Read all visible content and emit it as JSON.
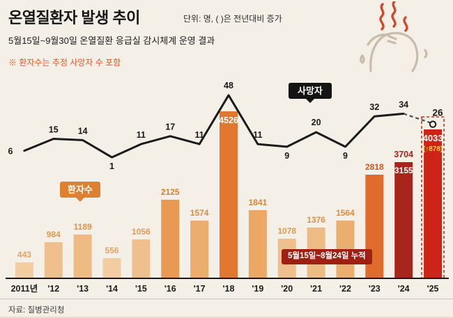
{
  "header": {
    "title": "온열질환자 발생 추이",
    "unit_note": "단위: 명, ( )은 전년대비 증가",
    "subtitle": "5월15일~9월30일 온열질환 응급실 감시체계 운영 결과",
    "footnote": "※ 환자수는 추정 사망자 수 포함"
  },
  "labels": {
    "patients": "환자수",
    "deaths": "사망자",
    "cumulative": "5월15일~8월24일 누적"
  },
  "footer": {
    "source": "자료: 질병관리청"
  },
  "chart_data": {
    "type": "bar",
    "title": "온열질환자 발생 추이",
    "categories": [
      "2011년",
      "'12",
      "'13",
      "'14",
      "'15",
      "'16",
      "'17",
      "'18",
      "'19",
      "'20",
      "'21",
      "'22",
      "'23",
      "'24",
      "'25"
    ],
    "series": [
      {
        "name": "환자수",
        "type": "bar",
        "values": [
          443,
          984,
          1189,
          556,
          1056,
          2125,
          1574,
          4526,
          1841,
          1078,
          1376,
          1564,
          2818,
          3155,
          4033
        ]
      },
      {
        "name": "사망자",
        "type": "line",
        "values": [
          6,
          15,
          14,
          1,
          11,
          17,
          11,
          48,
          11,
          9,
          20,
          9,
          32,
          34,
          26
        ]
      }
    ],
    "notes": {
      "y2024_full_period_patients": "3704",
      "y2025_yoy_change": "(↑878)"
    },
    "ylim_bar": [
      0,
      4526
    ],
    "ylim_line": [
      0,
      50
    ],
    "grid": false,
    "legend_position": "inline-callouts"
  },
  "style": {
    "background": "#f4efe7",
    "bar_colors": [
      "#f2cda2",
      "#efc08d",
      "#eebb84",
      "#f2cda2",
      "#efc08d",
      "#e89a55",
      "#ecae6e",
      "#e2782f",
      "#eaa863",
      "#efc08d",
      "#eebb84",
      "#ecae6e",
      "#e06b2c",
      "#a8251b",
      "#ce2417"
    ],
    "bar_label_colors": [
      "#e5a362",
      "#e09a53",
      "#dd9148",
      "#e5a362",
      "#e09a53",
      "#d87c2e",
      "#dd8c3f",
      "#ffffff",
      "#db8738",
      "#e09a53",
      "#dd9148",
      "#dd8c3f",
      "#d4571f",
      "#a8251b",
      "#ffffff"
    ],
    "inside_label_color": "#ffffff",
    "increase_label_color": "#ffd34d",
    "full_period_label_color": "#a8251b",
    "line_color": "#1a1a1a",
    "dash_color": "#4a4a4a",
    "death_label_color": "#1a1a1a",
    "axis_color": "#1a1a1a",
    "tick_label_color": "#1c1c1c",
    "patients_box_bg": "#dd8030",
    "deaths_box_bg": "#141414",
    "cumulative_box_bg": "#9e2012",
    "dashed_outline_color": "#c43022",
    "note_color": "#e2572b",
    "heat_color": "#cf4a2b",
    "person_color": "#c8bcab"
  }
}
